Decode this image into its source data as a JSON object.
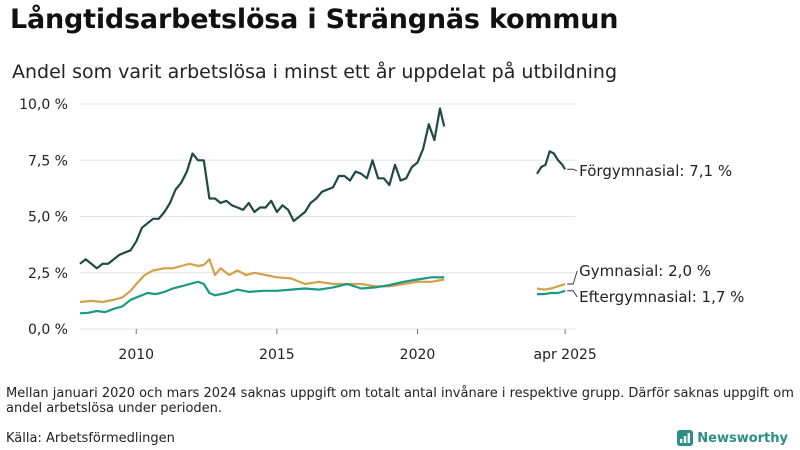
{
  "title": "Långtidsarbetslösa i Strängnäs kommun",
  "subtitle": "Andel som varit arbetslösa i minst ett år uppdelat på utbildning",
  "note": "Mellan januari 2020 och mars 2024 saknas uppgift om totalt antal invånare i respektive grupp. Därför saknas uppgift om andel arbetslösa under perioden.",
  "source": "Källa: Arbetsförmedlingen",
  "brand": {
    "name": "Newsworthy",
    "icon": "newsworthy-logo-icon"
  },
  "chart_data": {
    "type": "line",
    "title": "Långtidsarbetslösa i Strängnäs kommun",
    "xlabel": "",
    "ylabel": "",
    "ylim": [
      0,
      10
    ],
    "xlim": [
      2008.0,
      2025.6
    ],
    "y_ticks": [
      {
        "value": 0,
        "label": "0,0 %"
      },
      {
        "value": 2.5,
        "label": "2,5 %"
      },
      {
        "value": 5,
        "label": "5,0 %"
      },
      {
        "value": 7.5,
        "label": "7,5 %"
      },
      {
        "value": 10,
        "label": "10,0 %"
      }
    ],
    "x_ticks": [
      {
        "value": 2010,
        "label": "2010"
      },
      {
        "value": 2015,
        "label": "2015"
      },
      {
        "value": 2020,
        "label": "2020"
      },
      {
        "value": 2025.25,
        "label": "apr 2025"
      }
    ],
    "grid": true,
    "series": [
      {
        "name": "Förgymnasial",
        "end_label": "Förgymnasial: 7,1 %",
        "color": "#1f4a44",
        "segments": [
          {
            "x": [
              2008.0,
              2008.2,
              2008.4,
              2008.6,
              2008.8,
              2009.0,
              2009.2,
              2009.4,
              2009.6,
              2009.8,
              2010.0,
              2010.2,
              2010.4,
              2010.6,
              2010.8,
              2011.0,
              2011.2,
              2011.4,
              2011.6,
              2011.8,
              2012.0,
              2012.2,
              2012.4,
              2012.6,
              2012.8,
              2013.0,
              2013.2,
              2013.4,
              2013.6,
              2013.8,
              2014.0,
              2014.2,
              2014.4,
              2014.6,
              2014.8,
              2015.0,
              2015.2,
              2015.4,
              2015.6,
              2015.8,
              2016.0,
              2016.2,
              2016.4,
              2016.6,
              2016.8,
              2017.0,
              2017.2,
              2017.4,
              2017.6,
              2017.8,
              2018.0,
              2018.2,
              2018.4,
              2018.6,
              2018.8,
              2019.0,
              2019.2,
              2019.4,
              2019.6,
              2019.8,
              2020.0,
              2020.2,
              2020.4,
              2020.6,
              2020.8,
              2020.95
            ],
            "y": [
              2.9,
              3.1,
              2.9,
              2.7,
              2.9,
              2.9,
              3.1,
              3.3,
              3.4,
              3.5,
              3.9,
              4.5,
              4.7,
              4.9,
              4.9,
              5.2,
              5.6,
              6.2,
              6.5,
              7.0,
              7.8,
              7.5,
              7.5,
              5.8,
              5.8,
              5.6,
              5.7,
              5.5,
              5.4,
              5.3,
              5.6,
              5.2,
              5.4,
              5.4,
              5.7,
              5.2,
              5.5,
              5.3,
              4.8,
              5.0,
              5.2,
              5.6,
              5.8,
              6.1,
              6.2,
              6.3,
              6.8,
              6.8,
              6.6,
              7.0,
              6.9,
              6.7,
              7.5,
              6.7,
              6.7,
              6.4,
              7.3,
              6.6,
              6.7,
              7.2,
              7.4,
              8.0,
              9.1,
              8.4,
              9.8,
              9.0
            ]
          },
          {
            "x": [
              2024.25,
              2024.4,
              2024.55,
              2024.7,
              2024.85,
              2025.0,
              2025.15,
              2025.25
            ],
            "y": [
              6.9,
              7.2,
              7.3,
              7.9,
              7.8,
              7.5,
              7.3,
              7.1
            ]
          }
        ]
      },
      {
        "name": "Gymnasial",
        "end_label": "Gymnasial: 2,0 %",
        "color": "#d4a04a",
        "segments": [
          {
            "x": [
              2008.0,
              2008.4,
              2008.8,
              2009.2,
              2009.5,
              2009.8,
              2010.0,
              2010.3,
              2010.6,
              2011.0,
              2011.3,
              2011.6,
              2011.9,
              2012.2,
              2012.4,
              2012.6,
              2012.8,
              2013.0,
              2013.3,
              2013.6,
              2013.9,
              2014.2,
              2014.6,
              2015.0,
              2015.5,
              2016.0,
              2016.5,
              2017.0,
              2017.5,
              2018.0,
              2018.5,
              2019.0,
              2019.5,
              2020.0,
              2020.5,
              2020.95
            ],
            "y": [
              1.2,
              1.25,
              1.2,
              1.3,
              1.4,
              1.7,
              2.0,
              2.4,
              2.6,
              2.7,
              2.7,
              2.8,
              2.9,
              2.8,
              2.85,
              3.1,
              2.4,
              2.7,
              2.4,
              2.6,
              2.4,
              2.5,
              2.4,
              2.3,
              2.25,
              2.0,
              2.1,
              2.0,
              2.0,
              2.0,
              1.9,
              1.9,
              2.0,
              2.1,
              2.1,
              2.2
            ]
          },
          {
            "x": [
              2024.25,
              2024.5,
              2024.75,
              2025.0,
              2025.25
            ],
            "y": [
              1.8,
              1.75,
              1.8,
              1.9,
              2.0
            ]
          }
        ]
      },
      {
        "name": "Eftergymnasial",
        "end_label": "Eftergymnasial: 1,7 %",
        "color": "#1a9985",
        "segments": [
          {
            "x": [
              2008.0,
              2008.3,
              2008.6,
              2008.9,
              2009.2,
              2009.5,
              2009.8,
              2010.1,
              2010.4,
              2010.7,
              2011.0,
              2011.3,
              2011.6,
              2011.9,
              2012.2,
              2012.4,
              2012.6,
              2012.8,
              2013.2,
              2013.6,
              2014.0,
              2014.5,
              2015.0,
              2015.5,
              2016.0,
              2016.5,
              2017.0,
              2017.5,
              2018.0,
              2018.5,
              2019.0,
              2019.5,
              2020.0,
              2020.5,
              2020.95
            ],
            "y": [
              0.7,
              0.72,
              0.8,
              0.75,
              0.9,
              1.0,
              1.3,
              1.45,
              1.6,
              1.55,
              1.65,
              1.8,
              1.9,
              2.0,
              2.1,
              2.0,
              1.6,
              1.5,
              1.6,
              1.75,
              1.65,
              1.7,
              1.7,
              1.75,
              1.8,
              1.75,
              1.85,
              2.0,
              1.8,
              1.85,
              1.95,
              2.1,
              2.2,
              2.3,
              2.3
            ]
          },
          {
            "x": [
              2024.25,
              2024.5,
              2024.75,
              2025.0,
              2025.25
            ],
            "y": [
              1.55,
              1.55,
              1.6,
              1.6,
              1.7
            ]
          }
        ]
      }
    ]
  }
}
